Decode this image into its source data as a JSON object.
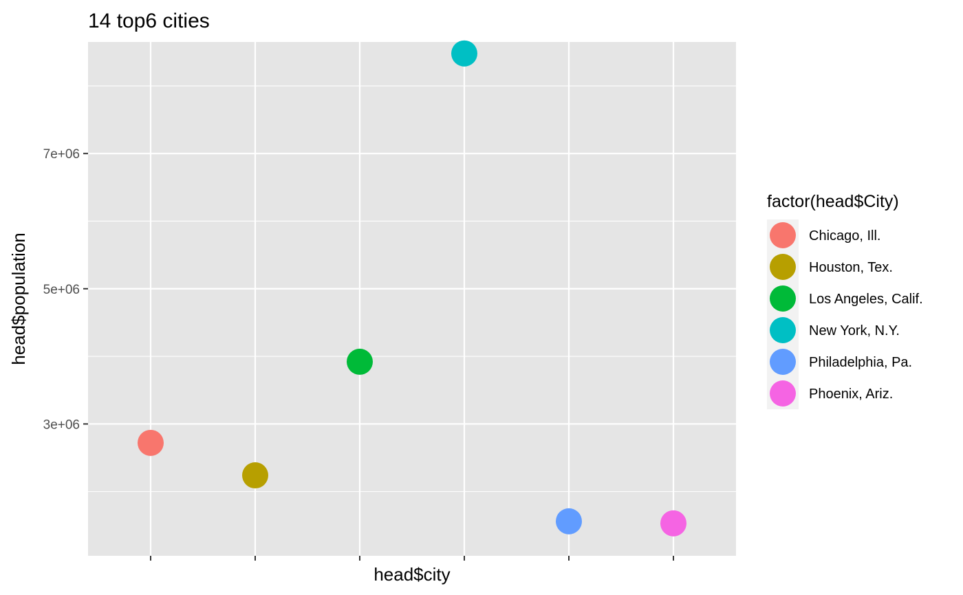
{
  "chart_data": {
    "type": "scatter",
    "title": "14 top6 cities",
    "xlabel": "head$city",
    "ylabel": "head$population",
    "ylim": [
      1050000,
      8650000
    ],
    "yticks": [
      {
        "value": 3000000,
        "label": "3e+06"
      },
      {
        "value": 5000000,
        "label": "5e+06"
      },
      {
        "value": 7000000,
        "label": "7e+06"
      }
    ],
    "y_minor_ticks": [
      2000000,
      4000000,
      6000000,
      8000000
    ],
    "grid": true,
    "panel_background": "#e5e5e5",
    "grid_color": "#ffffff",
    "legend": {
      "title": "factor(head$City)",
      "position": "right"
    },
    "points": [
      {
        "x_category": 1,
        "y": 2720000,
        "city": "Chicago, Ill.",
        "color": "#f8766d"
      },
      {
        "x_category": 2,
        "y": 2240000,
        "city": "Houston, Tex.",
        "color": "#b79f00"
      },
      {
        "x_category": 3,
        "y": 3920000,
        "city": "Los Angeles, Calif.",
        "color": "#00ba38"
      },
      {
        "x_category": 4,
        "y": 8480000,
        "city": "New York, N.Y.",
        "color": "#00bfc4"
      },
      {
        "x_category": 5,
        "y": 1560000,
        "city": "Philadelphia, Pa.",
        "color": "#619cff"
      },
      {
        "x_category": 6,
        "y": 1530000,
        "city": "Phoenix, Ariz.",
        "color": "#f564e3"
      }
    ]
  }
}
